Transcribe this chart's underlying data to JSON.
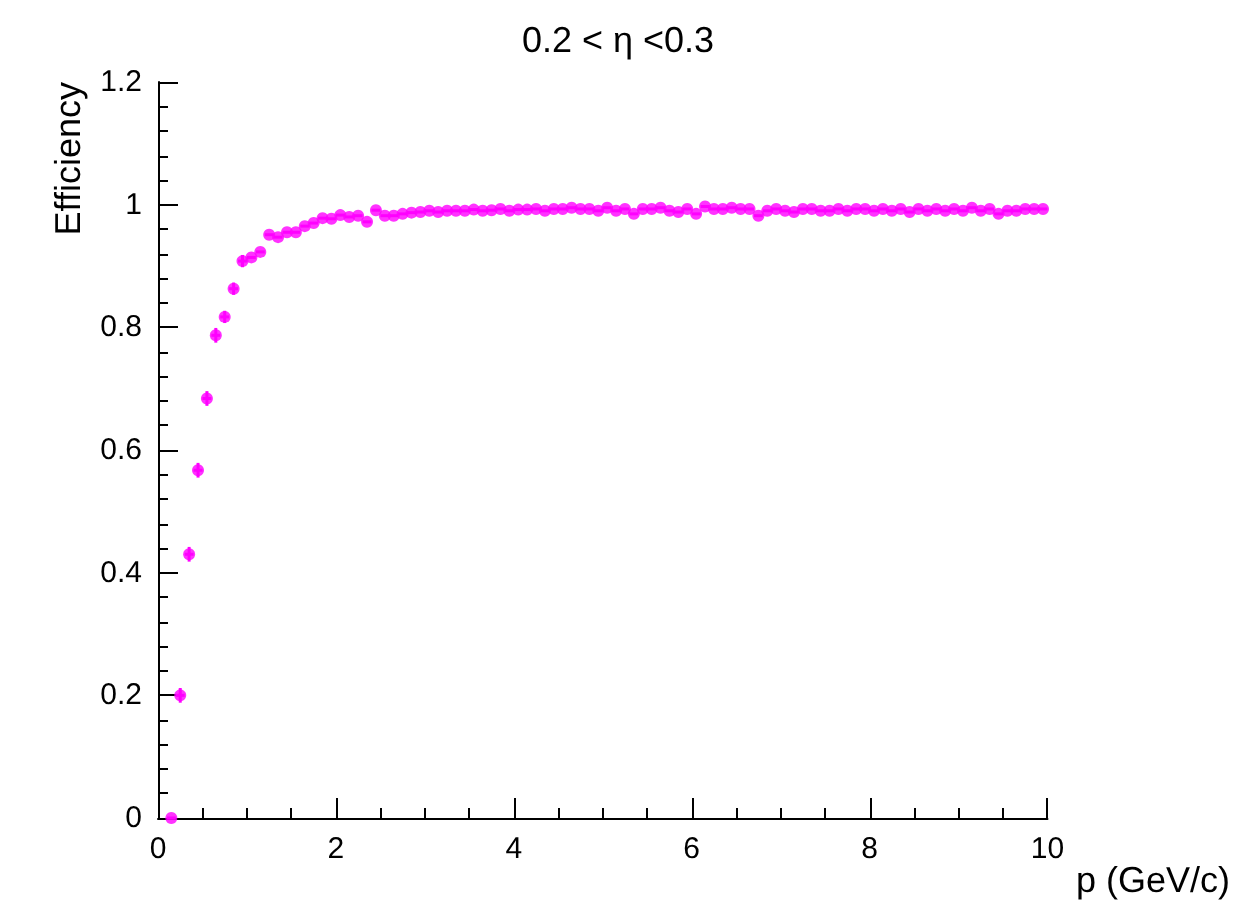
{
  "chart_data": {
    "type": "scatter",
    "title": "0.2 < η <0.3",
    "xlabel": "p (GeV/c)",
    "ylabel": "Efficiency",
    "x": [
      0.15,
      0.25,
      0.35,
      0.45,
      0.55,
      0.65,
      0.75,
      0.85,
      0.95,
      1.05,
      1.15,
      1.25,
      1.35,
      1.45,
      1.55,
      1.65,
      1.75,
      1.85,
      1.95,
      2.05,
      2.15,
      2.25,
      2.35,
      2.45,
      2.55,
      2.65,
      2.75,
      2.85,
      2.95,
      3.05,
      3.15,
      3.25,
      3.35,
      3.45,
      3.55,
      3.65,
      3.75,
      3.85,
      3.95,
      4.05,
      4.15,
      4.25,
      4.35,
      4.45,
      4.55,
      4.65,
      4.75,
      4.85,
      4.95,
      5.05,
      5.15,
      5.25,
      5.35,
      5.45,
      5.55,
      5.65,
      5.75,
      5.85,
      5.95,
      6.05,
      6.15,
      6.25,
      6.35,
      6.45,
      6.55,
      6.65,
      6.75,
      6.85,
      6.95,
      7.05,
      7.15,
      7.25,
      7.35,
      7.45,
      7.55,
      7.65,
      7.75,
      7.85,
      7.95,
      8.05,
      8.15,
      8.25,
      8.35,
      8.45,
      8.55,
      8.65,
      8.75,
      8.85,
      8.95,
      9.05,
      9.15,
      9.25,
      9.35,
      9.45,
      9.55,
      9.65,
      9.75,
      9.85,
      9.95
    ],
    "series": [
      {
        "color": "#ff00ff",
        "values": [
          0,
          0.2,
          0.43,
          0.567,
          0.684,
          0.787,
          0.817,
          0.863,
          0.908,
          0.914,
          0.923,
          0.951,
          0.947,
          0.955,
          0.955,
          0.965,
          0.97,
          0.978,
          0.977,
          0.983,
          0.98,
          0.982,
          0.972,
          0.991,
          0.982,
          0.982,
          0.985,
          0.987,
          0.988,
          0.99,
          0.988,
          0.99,
          0.99,
          0.99,
          0.992,
          0.99,
          0.991,
          0.993,
          0.99,
          0.992,
          0.992,
          0.993,
          0.99,
          0.993,
          0.993,
          0.995,
          0.993,
          0.993,
          0.99,
          0.995,
          0.99,
          0.993,
          0.985,
          0.993,
          0.993,
          0.995,
          0.99,
          0.988,
          0.993,
          0.985,
          0.997,
          0.993,
          0.993,
          0.995,
          0.993,
          0.993,
          0.982,
          0.99,
          0.993,
          0.99,
          0.988,
          0.993,
          0.993,
          0.99,
          0.99,
          0.993,
          0.99,
          0.993,
          0.993,
          0.99,
          0.993,
          0.99,
          0.993,
          0.988,
          0.993,
          0.99,
          0.993,
          0.99,
          0.993,
          0.99,
          0.995,
          0.99,
          0.993,
          0.985,
          0.99,
          0.99,
          0.993,
          0.993,
          0.993
        ],
        "errors": [
          null,
          0.012,
          0.012,
          0.012,
          0.012,
          0.012,
          0.01,
          0.01,
          0.01,
          null,
          null,
          null,
          null,
          null,
          null,
          null,
          null,
          null,
          null,
          null,
          null,
          null,
          null,
          null,
          null,
          null,
          null,
          null,
          null,
          null,
          null,
          null,
          null,
          null,
          null,
          null,
          null,
          null,
          null,
          null,
          null,
          null,
          null,
          null,
          null,
          null,
          null,
          null,
          null,
          null,
          null,
          null,
          null,
          null,
          null,
          null,
          null,
          null,
          null,
          null,
          null,
          null,
          null,
          null,
          null,
          null,
          null,
          null,
          null,
          null,
          null,
          null,
          null,
          null,
          null,
          null,
          null,
          null,
          null,
          null,
          null,
          null,
          null,
          null,
          null,
          null,
          null,
          null,
          null,
          null,
          null,
          null,
          null,
          null,
          null,
          null,
          null,
          null,
          null
        ],
        "xerrors": [
          0.05,
          0.05,
          0.05,
          0.05,
          0.05,
          0.05,
          0.05,
          0.05,
          0.05,
          0.05,
          0.05,
          0.05,
          0.05,
          0.05,
          0.05,
          0.05,
          0.05,
          0.05,
          0.05,
          0.05,
          0.05,
          0.05,
          0.05,
          0.05,
          0.05,
          0.05,
          0.05,
          0.05,
          0.05,
          0.05,
          0.05,
          0.05,
          0.05,
          0.05,
          0.05,
          0.05,
          0.05,
          0.05,
          0.05,
          0.05,
          0.05,
          0.05,
          0.05,
          0.05,
          0.05,
          0.05,
          0.05,
          0.05,
          0.05,
          0.05,
          0.05,
          0.05,
          0.05,
          0.05,
          0.05,
          0.05,
          0.05,
          0.05,
          0.05,
          0.05,
          0.05,
          0.05,
          0.05,
          0.05,
          0.05,
          0.05,
          0.05,
          0.05,
          0.05,
          0.05,
          0.05,
          0.05,
          0.05,
          0.05,
          0.05,
          0.05,
          0.05,
          0.05,
          0.05,
          0.05,
          0.05,
          0.05,
          0.05,
          0.05,
          0.05,
          0.05,
          0.05,
          0.05,
          0.05,
          0.05,
          0.05,
          0.05,
          0.05,
          0.05,
          0.05,
          0.05,
          0.05,
          0.05,
          0.05
        ]
      }
    ],
    "marker": "circle",
    "grid": false,
    "xlim": [
      0,
      10
    ],
    "xticks": [
      0,
      2,
      4,
      6,
      8,
      10
    ],
    "ylim": [
      0,
      1.2
    ],
    "yticks": [
      0,
      0.2,
      0.4,
      0.6,
      0.8,
      1,
      1.2
    ]
  }
}
